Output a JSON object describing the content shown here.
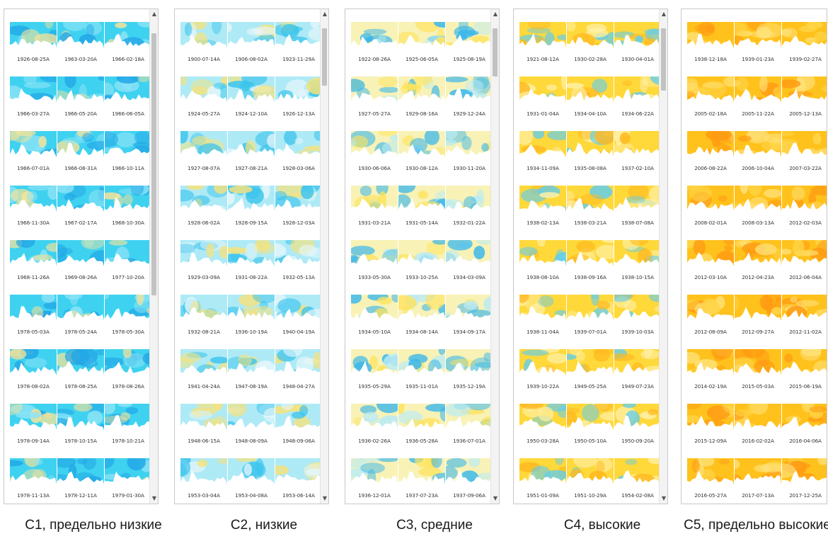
{
  "palette": {
    "c1": [
      "#3fd2f0",
      "#8ee4f6",
      "#22a6e6",
      "#f4e39a"
    ],
    "c2": [
      "#aeeaf6",
      "#e8f7fb",
      "#3cc4ec",
      "#f6e27a"
    ],
    "c3": [
      "#f8f2b6",
      "#b9ebf6",
      "#ffe35a",
      "#37b6ec"
    ],
    "c4": [
      "#ffd83a",
      "#fff0a6",
      "#ffb81e",
      "#5fcdef"
    ],
    "c5": [
      "#ffc21c",
      "#ffe27a",
      "#ff9a12",
      "#ffd64a"
    ]
  },
  "panels": [
    {
      "id": "c1",
      "caption": "С1, предельно низкие",
      "scrollbar": {
        "thumb_top": 0.03,
        "thumb_size": 0.55
      },
      "dates": [
        "1926-08-25A",
        "1963-03-20A",
        "1966-02-18A",
        "1966-03-27A",
        "1966-05-20A",
        "1966-06-05A",
        "1966-07-01A",
        "1966-08-31A",
        "1966-10-11A",
        "1966-11-30A",
        "1967-02-17A",
        "1968-10-30A",
        "1968-11-26A",
        "1969-08-26A",
        "1977-10-20A",
        "1978-05-03A",
        "1978-05-24A",
        "1978-05-30A",
        "1978-08-02A",
        "1978-08-25A",
        "1978-08-26A",
        "1978-09-14A",
        "1978-10-15A",
        "1978-10-21A",
        "1978-11-13A",
        "1978-12-11A",
        "1979-01-30A"
      ]
    },
    {
      "id": "c2",
      "caption": "С2, низкие",
      "scrollbar": {
        "thumb_top": 0.02,
        "thumb_size": 0.12
      },
      "dates": [
        "1900-07-14A",
        "1906-08-02A",
        "1923-11-29A",
        "1924-05-27A",
        "1924-12-10A",
        "1926-12-13A",
        "1927-08-07A",
        "1927-08-21A",
        "1928-03-06A",
        "1928-06-02A",
        "1928-09-15A",
        "1928-12-03A",
        "1929-03-09A",
        "1931-08-22A",
        "1932-05-13A",
        "1932-08-21A",
        "1936-10-19A",
        "1940-04-19A",
        "1941-04-24A",
        "1947-08-19A",
        "1948-04-27A",
        "1948-06-15A",
        "1948-08-09A",
        "1948-09-06A",
        "1953-03-04A",
        "1953-04-08A",
        "1953-06-14A"
      ]
    },
    {
      "id": "c3",
      "caption": "С3, средние",
      "scrollbar": {
        "thumb_top": 0.02,
        "thumb_size": 0.1
      },
      "dates": [
        "1922-08-26A",
        "1925-06-05A",
        "1925-08-19A",
        "1927-05-27A",
        "1929-08-16A",
        "1929-12-24A",
        "1930-06-06A",
        "1930-08-12A",
        "1930-11-20A",
        "1931-03-21A",
        "1931-05-14A",
        "1932-01-22A",
        "1933-05-30A",
        "1933-10-25A",
        "1934-03-09A",
        "1934-05-10A",
        "1934-08-14A",
        "1934-09-17A",
        "1935-05-29A",
        "1935-11-01A",
        "1935-12-19A",
        "1936-02-26A",
        "1936-05-28A",
        "1936-07-01A",
        "1936-12-01A",
        "1937-07-23A",
        "1937-09-06A"
      ]
    },
    {
      "id": "c4",
      "caption": "С4, высокие",
      "scrollbar": {
        "thumb_top": 0.02,
        "thumb_size": 0.13
      },
      "dates": [
        "1921-08-12A",
        "1930-02-28A",
        "1930-04-01A",
        "1931-01-04A",
        "1934-04-10A",
        "1934-06-22A",
        "1934-11-09A",
        "1935-08-08A",
        "1937-02-10A",
        "1938-02-13A",
        "1938-03-21A",
        "1938-07-08A",
        "1938-08-10A",
        "1938-09-16A",
        "1938-10-15A",
        "1938-11-04A",
        "1939-07-01A",
        "1939-10-03A",
        "1939-10-22A",
        "1949-05-25A",
        "1949-07-23A",
        "1950-03-28A",
        "1950-05-10A",
        "1950-09-20A",
        "1951-01-09A",
        "1951-10-29A",
        "1954-02-08A"
      ]
    },
    {
      "id": "c5",
      "caption": "С5, предельно высокие",
      "scrollbar": null,
      "dates": [
        "1938-12-18A",
        "1939-01-23A",
        "1939-02-27A",
        "2005-02-18A",
        "2005-11-22A",
        "2005-12-13A",
        "2006-08-22A",
        "2006-10-04A",
        "2007-03-22A",
        "2008-02-01A",
        "2008-03-13A",
        "2012-02-03A",
        "2012-03-10A",
        "2012-04-23A",
        "2012-06-04A",
        "2012-08-09A",
        "2012-09-27A",
        "2012-11-02A",
        "2014-02-19A",
        "2015-05-03A",
        "2015-06-19A",
        "2015-12-09A",
        "2016-02-02A",
        "2016-04-06A",
        "2016-05-27A",
        "2017-07-13A",
        "2017-12-25A"
      ]
    }
  ]
}
